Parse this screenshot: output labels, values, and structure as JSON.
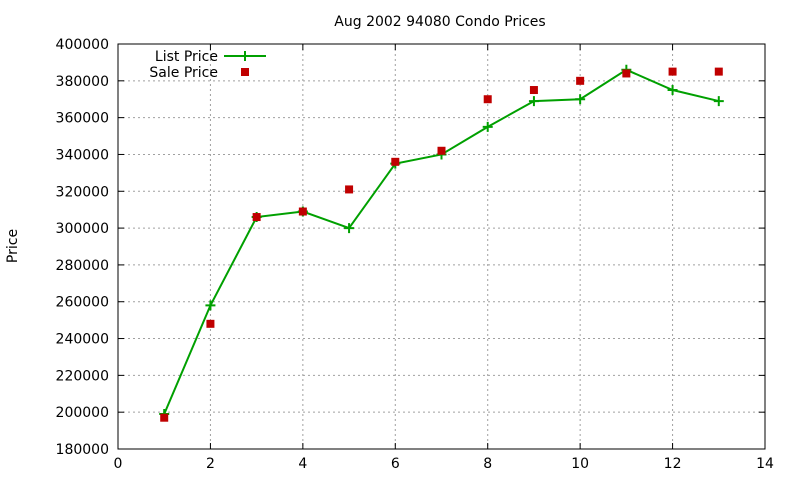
{
  "chart_data": {
    "type": "line",
    "title": "Aug 2002 94080 Condo Prices",
    "xlabel": "",
    "ylabel": "Price",
    "xlim": [
      0,
      14
    ],
    "ylim": [
      180000,
      400000
    ],
    "x_ticks": [
      0,
      2,
      4,
      6,
      8,
      10,
      12,
      14
    ],
    "y_ticks": [
      180000,
      200000,
      220000,
      240000,
      260000,
      280000,
      300000,
      320000,
      340000,
      360000,
      380000,
      400000
    ],
    "grid": true,
    "legend_position": "top-left",
    "series": [
      {
        "name": "List Price",
        "style": "lines+points",
        "marker": "plus",
        "color": "#00a000",
        "x": [
          1,
          2,
          3,
          4,
          5,
          6,
          7,
          8,
          9,
          10,
          11,
          12,
          13
        ],
        "values": [
          199000,
          258000,
          306000,
          309000,
          300000,
          335000,
          340000,
          355000,
          369000,
          370000,
          386000,
          375000,
          369000
        ]
      },
      {
        "name": "Sale Price",
        "style": "points",
        "marker": "square",
        "color": "#c00000",
        "x": [
          1,
          2,
          3,
          4,
          5,
          6,
          7,
          8,
          9,
          10,
          11,
          12,
          13
        ],
        "values": [
          197000,
          248000,
          306000,
          309000,
          321000,
          336000,
          342000,
          370000,
          375000,
          380000,
          384000,
          385000,
          385000
        ]
      }
    ]
  }
}
